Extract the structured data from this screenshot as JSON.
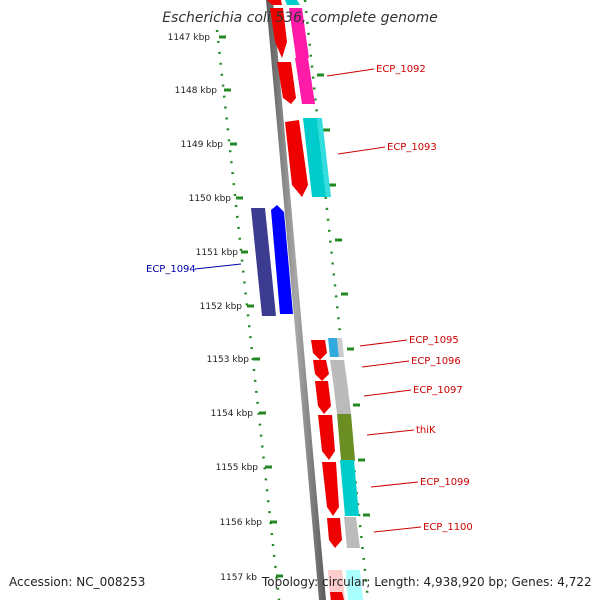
{
  "title": "Escherichia coli 536, complete genome",
  "footer": {
    "accession": "Accession: NC_008253",
    "topology": "Topology: circular; Length: 4,938,920 bp; Genes: 4,722"
  },
  "scale": {
    "labels": [
      "1147 kbp",
      "1148 kbp",
      "1149 kbp",
      "1150 kbp",
      "1151 kbp",
      "1152 kbp",
      "1153 kbp",
      "1154 kbp",
      "1155 kbp",
      "1156 kbp",
      "1157 kb"
    ]
  },
  "colors": {
    "gene_label_red": "#cc0000",
    "gene_label_blue": "#0000aa",
    "backbone": "#888888",
    "scale_dots": "#228822",
    "cds_red": "#ee0000",
    "cds_blue": "#0000ff",
    "cds_navy": "#3b3b8f",
    "magenta": "#ff1aa8",
    "cyan": "#00cccc",
    "gray": "#bbbbbb",
    "olive": "#6b8e23"
  },
  "gene_labels": {
    "ecp1092": "ECP_1092",
    "ecp1093": "ECP_1093",
    "ecp1094": "ECP_1094",
    "ecp1095": "ECP_1095",
    "ecp1096": "ECP_1096",
    "ecp1097": "ECP_1097",
    "thik": "thiK",
    "ecp1099": "ECP_1099",
    "ecp1100": "ECP_1100"
  }
}
